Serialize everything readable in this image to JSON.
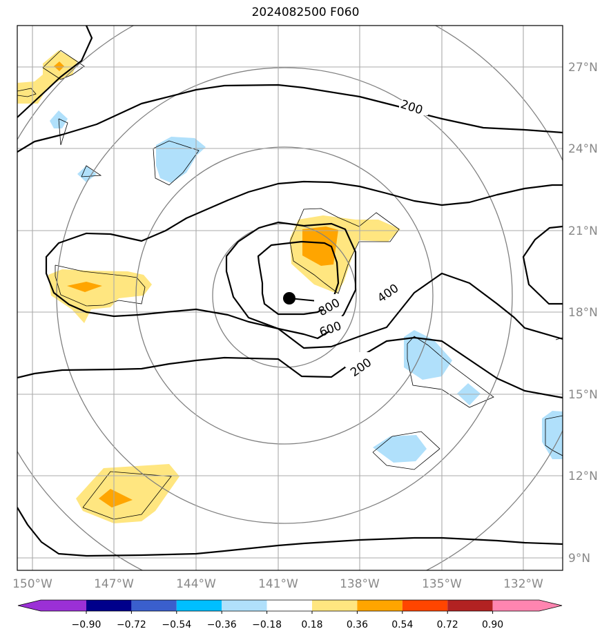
{
  "title": "2024082500 F060",
  "map": {
    "lon_ticks": [
      "150°W",
      "147°W",
      "144°W",
      "141°W",
      "138°W",
      "135°W",
      "132°W"
    ],
    "lat_ticks": [
      "27°N",
      "24°N",
      "21°N",
      "18°N",
      "15°N",
      "12°N",
      "9°N"
    ],
    "contour_labels": [
      "200",
      "400",
      "600",
      "800",
      "200"
    ],
    "storm_center": {
      "lon": "140.6°W",
      "lat": "18.5°N"
    }
  },
  "colorbar": {
    "ticks": [
      "−0.90",
      "−0.72",
      "−0.54",
      "−0.36",
      "−0.18",
      "0.18",
      "0.36",
      "0.54",
      "0.72",
      "0.90"
    ],
    "colors": [
      "#9b30d6",
      "#00008b",
      "#3a5fcd",
      "#00bfff",
      "#b0e0fb",
      "#ffffff",
      "#ffe680",
      "#ffa500",
      "#ff4500",
      "#b22222",
      "#ff85b0"
    ]
  }
}
